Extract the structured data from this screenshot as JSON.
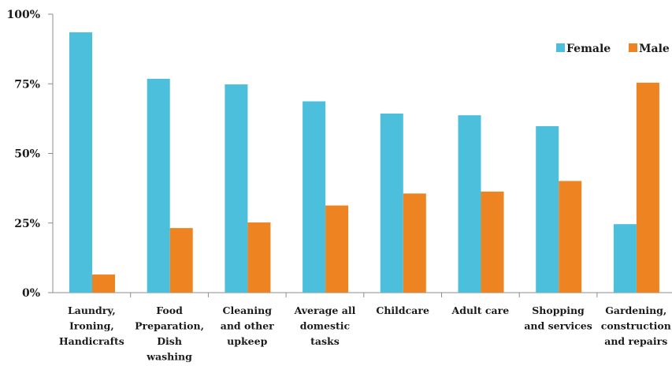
{
  "chart_data": {
    "type": "bar",
    "categories": [
      [
        "Laundry,",
        "Ironing,",
        "Handicrafts"
      ],
      [
        "Food",
        "Preparation,",
        "Dish",
        "washing"
      ],
      [
        "Cleaning",
        "and other",
        "upkeep"
      ],
      [
        "Average all",
        "domestic",
        "tasks"
      ],
      [
        "Childcare"
      ],
      [
        "Adult care"
      ],
      [
        "Shopping",
        "and services"
      ],
      [
        "Gardening,",
        "construction",
        "and repairs"
      ]
    ],
    "series": [
      {
        "name": "Female",
        "color": "#4bbfdc",
        "values": [
          93.5,
          76.8,
          74.8,
          68.7,
          64.3,
          63.7,
          59.8,
          24.6
        ]
      },
      {
        "name": "Male",
        "color": "#ee8322",
        "values": [
          6.5,
          23.2,
          25.2,
          31.3,
          35.6,
          36.3,
          40.1,
          75.4
        ]
      }
    ],
    "y_ticks": [
      "0%",
      "25%",
      "50%",
      "75%",
      "100%"
    ],
    "ylim": [
      0,
      100
    ],
    "legend_position": "top-right",
    "grid": false
  }
}
